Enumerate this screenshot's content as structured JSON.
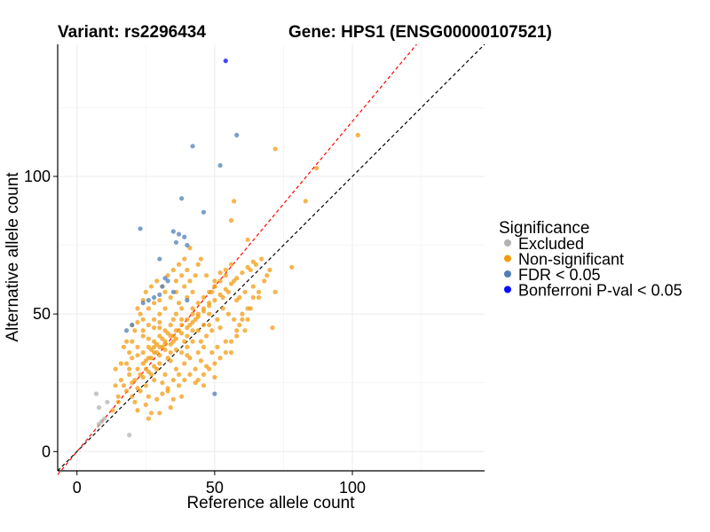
{
  "chart_data": {
    "type": "scatter",
    "title_left": "Variant: rs2296434",
    "title_right": "Gene: HPS1 (ENSG00000107521)",
    "xlabel": "Reference allele count",
    "ylabel": "Alternative allele count",
    "xlim": [
      -7,
      148
    ],
    "ylim": [
      -7,
      148
    ],
    "x_ticks": [
      0,
      50,
      100
    ],
    "y_ticks": [
      0,
      50,
      100
    ],
    "grid": true,
    "legend": {
      "title": "Significance",
      "position": "right",
      "entries": [
        {
          "label": "Excluded",
          "color": "#b3b3b3"
        },
        {
          "label": "Non-significant",
          "color": "#f39c12"
        },
        {
          "label": "FDR < 0.05",
          "color": "#4f7fb5"
        },
        {
          "label": "Bonferroni P-val < 0.05",
          "color": "#0b0bff"
        }
      ]
    },
    "reference_lines": [
      {
        "name": "identity",
        "slope": 1,
        "intercept": 0,
        "color": "#000000",
        "style": "dashed"
      },
      {
        "name": "fitted",
        "slope": 1.2,
        "intercept": 0,
        "color": "#ff0000",
        "style": "dashed"
      }
    ],
    "series": [
      {
        "name": "Excluded",
        "color": "#b3b3b3",
        "points": [
          [
            7,
            21
          ],
          [
            8,
            10
          ],
          [
            9,
            11
          ],
          [
            10,
            12
          ],
          [
            8,
            16
          ],
          [
            19,
            6
          ],
          [
            11,
            18
          ]
        ]
      },
      {
        "name": "Non-significant",
        "color": "#f39c12",
        "points": [
          [
            102,
            115
          ],
          [
            72,
            110
          ],
          [
            87,
            103
          ],
          [
            83,
            91
          ],
          [
            57,
            91
          ],
          [
            56,
            84
          ],
          [
            62,
            77
          ],
          [
            78,
            67
          ],
          [
            72,
            58
          ],
          [
            71,
            45
          ],
          [
            62,
            48
          ],
          [
            58,
            55
          ],
          [
            45,
            70
          ],
          [
            43,
            64
          ],
          [
            50,
            60
          ],
          [
            30,
            45
          ],
          [
            35,
            40
          ],
          [
            40,
            35
          ],
          [
            25,
            30
          ],
          [
            20,
            25
          ],
          [
            28,
            38
          ],
          [
            32,
            28
          ],
          [
            38,
            48
          ],
          [
            42,
            52
          ],
          [
            22,
            35
          ],
          [
            18,
            22
          ],
          [
            15,
            18
          ],
          [
            24,
            42
          ],
          [
            26,
            20
          ],
          [
            30,
            32
          ],
          [
            34,
            36
          ],
          [
            36,
            30
          ],
          [
            44,
            44
          ],
          [
            48,
            50
          ],
          [
            52,
            45
          ],
          [
            46,
            38
          ],
          [
            40,
            42
          ],
          [
            28,
            26
          ],
          [
            22,
            30
          ],
          [
            19,
            28
          ],
          [
            16,
            26
          ],
          [
            14,
            24
          ],
          [
            20,
            40
          ],
          [
            24,
            48
          ],
          [
            26,
            52
          ],
          [
            30,
            55
          ],
          [
            32,
            58
          ],
          [
            36,
            62
          ],
          [
            40,
            66
          ],
          [
            44,
            68
          ],
          [
            27,
            34
          ],
          [
            29,
            36
          ],
          [
            31,
            38
          ],
          [
            33,
            34
          ],
          [
            35,
            42
          ],
          [
            37,
            44
          ],
          [
            39,
            40
          ],
          [
            41,
            46
          ],
          [
            43,
            48
          ],
          [
            45,
            40
          ],
          [
            47,
            42
          ],
          [
            49,
            36
          ],
          [
            51,
            38
          ],
          [
            53,
            52
          ],
          [
            55,
            58
          ],
          [
            50,
            27
          ],
          [
            46,
            24
          ],
          [
            38,
            20
          ],
          [
            34,
            16
          ],
          [
            30,
            14
          ],
          [
            26,
            12
          ],
          [
            22,
            15
          ],
          [
            21,
            18
          ],
          [
            23,
            22
          ],
          [
            25,
            24
          ],
          [
            27,
            28
          ],
          [
            29,
            30
          ],
          [
            31,
            25
          ],
          [
            33,
            22
          ],
          [
            35,
            26
          ],
          [
            37,
            28
          ],
          [
            39,
            32
          ],
          [
            41,
            34
          ],
          [
            43,
            30
          ],
          [
            45,
            33
          ],
          [
            47,
            31
          ],
          [
            49,
            44
          ],
          [
            51,
            48
          ],
          [
            54,
            40
          ],
          [
            56,
            36
          ],
          [
            58,
            42
          ],
          [
            60,
            50
          ],
          [
            64,
            60
          ],
          [
            66,
            56
          ],
          [
            24,
            36
          ],
          [
            26,
            38
          ],
          [
            28,
            40
          ],
          [
            30,
            42
          ],
          [
            32,
            44
          ],
          [
            34,
            46
          ],
          [
            36,
            50
          ],
          [
            38,
            52
          ],
          [
            40,
            56
          ],
          [
            42,
            58
          ],
          [
            18,
            32
          ],
          [
            20,
            34
          ],
          [
            22,
            38
          ],
          [
            24,
            44
          ],
          [
            26,
            46
          ],
          [
            28,
            48
          ],
          [
            13,
            15
          ],
          [
            15,
            20
          ],
          [
            17,
            24
          ],
          [
            19,
            30
          ],
          [
            21,
            26
          ],
          [
            23,
            28
          ],
          [
            25,
            33
          ],
          [
            27,
            37
          ],
          [
            29,
            39
          ],
          [
            31,
            41
          ],
          [
            33,
            43
          ],
          [
            35,
            48
          ],
          [
            37,
            54
          ],
          [
            39,
            60
          ],
          [
            41,
            62
          ],
          [
            28,
            54
          ],
          [
            30,
            50
          ],
          [
            32,
            52
          ],
          [
            34,
            56
          ],
          [
            36,
            58
          ],
          [
            38,
            64
          ],
          [
            42,
            40
          ],
          [
            44,
            36
          ],
          [
            46,
            46
          ],
          [
            48,
            54
          ],
          [
            50,
            62
          ],
          [
            52,
            65
          ],
          [
            54,
            64
          ],
          [
            57,
            62
          ],
          [
            59,
            46
          ],
          [
            61,
            44
          ],
          [
            63,
            52
          ],
          [
            25,
            17
          ],
          [
            27,
            14
          ],
          [
            29,
            19
          ],
          [
            31,
            21
          ],
          [
            33,
            23
          ],
          [
            35,
            19
          ],
          [
            37,
            24
          ],
          [
            39,
            26
          ],
          [
            41,
            28
          ],
          [
            43,
            25
          ],
          [
            22,
            47
          ],
          [
            24,
            55
          ],
          [
            26,
            41
          ],
          [
            28,
            45
          ],
          [
            30,
            47
          ],
          [
            32,
            39
          ],
          [
            34,
            33
          ],
          [
            36,
            37
          ],
          [
            38,
            36
          ],
          [
            40,
            38
          ],
          [
            42,
            44
          ],
          [
            44,
            50
          ],
          [
            46,
            52
          ],
          [
            48,
            46
          ],
          [
            17,
            38
          ],
          [
            19,
            36
          ],
          [
            21,
            44
          ],
          [
            23,
            50
          ],
          [
            25,
            58
          ],
          [
            27,
            60
          ],
          [
            29,
            62
          ],
          [
            31,
            60
          ],
          [
            33,
            64
          ],
          [
            35,
            66
          ],
          [
            37,
            68
          ],
          [
            39,
            70
          ],
          [
            41,
            74
          ],
          [
            47,
            64
          ],
          [
            49,
            58
          ],
          [
            53,
            56
          ],
          [
            55,
            50
          ],
          [
            57,
            48
          ],
          [
            59,
            56
          ],
          [
            61,
            58
          ],
          [
            63,
            66
          ],
          [
            65,
            68
          ],
          [
            67,
            70
          ],
          [
            69,
            64
          ],
          [
            20,
            20
          ],
          [
            22,
            23
          ],
          [
            24,
            27
          ],
          [
            26,
            29
          ],
          [
            28,
            31
          ],
          [
            30,
            35
          ],
          [
            32,
            37
          ],
          [
            34,
            39
          ],
          [
            36,
            41
          ],
          [
            38,
            43
          ],
          [
            40,
            45
          ],
          [
            42,
            47
          ],
          [
            44,
            49
          ],
          [
            46,
            51
          ],
          [
            48,
            53
          ],
          [
            50,
            55
          ],
          [
            52,
            57
          ],
          [
            54,
            59
          ],
          [
            56,
            61
          ],
          [
            58,
            63
          ],
          [
            60,
            65
          ],
          [
            62,
            67
          ],
          [
            64,
            69
          ],
          [
            14,
            30
          ],
          [
            16,
            32
          ],
          [
            18,
            40
          ],
          [
            20,
            46
          ],
          [
            22,
            52
          ],
          [
            24,
            32
          ],
          [
            26,
            34
          ],
          [
            28,
            36
          ],
          [
            30,
            38
          ],
          [
            32,
            40
          ],
          [
            34,
            42
          ],
          [
            36,
            44
          ],
          [
            38,
            46
          ],
          [
            40,
            48
          ],
          [
            42,
            50
          ],
          [
            44,
            54
          ],
          [
            46,
            56
          ],
          [
            48,
            58
          ],
          [
            50,
            60
          ],
          [
            52,
            62
          ],
          [
            54,
            66
          ],
          [
            56,
            68
          ],
          [
            44,
            26
          ],
          [
            46,
            28
          ],
          [
            48,
            30
          ],
          [
            50,
            32
          ],
          [
            52,
            34
          ],
          [
            54,
            36
          ],
          [
            56,
            40
          ],
          [
            58,
            44
          ],
          [
            60,
            48
          ],
          [
            62,
            52
          ],
          [
            64,
            56
          ],
          [
            66,
            58
          ],
          [
            68,
            62
          ],
          [
            70,
            66
          ]
        ]
      },
      {
        "name": "FDR < 0.05",
        "color": "#4f7fb5",
        "points": [
          [
            58,
            115
          ],
          [
            42,
            111
          ],
          [
            52,
            104
          ],
          [
            38,
            92
          ],
          [
            46,
            87
          ],
          [
            23,
            81
          ],
          [
            35,
            80
          ],
          [
            37,
            79
          ],
          [
            39,
            78
          ],
          [
            40,
            75
          ],
          [
            36,
            76
          ],
          [
            30,
            70
          ],
          [
            32,
            63
          ],
          [
            33,
            62
          ],
          [
            35,
            58
          ],
          [
            31,
            60
          ],
          [
            30,
            57
          ],
          [
            28,
            56
          ],
          [
            26,
            55
          ],
          [
            24,
            54
          ],
          [
            20,
            46
          ],
          [
            18,
            44
          ],
          [
            50,
            21
          ],
          [
            40,
            55
          ]
        ]
      },
      {
        "name": "Bonferroni P-val < 0.05",
        "color": "#0b0bff",
        "points": [
          [
            54,
            142
          ]
        ]
      }
    ]
  }
}
